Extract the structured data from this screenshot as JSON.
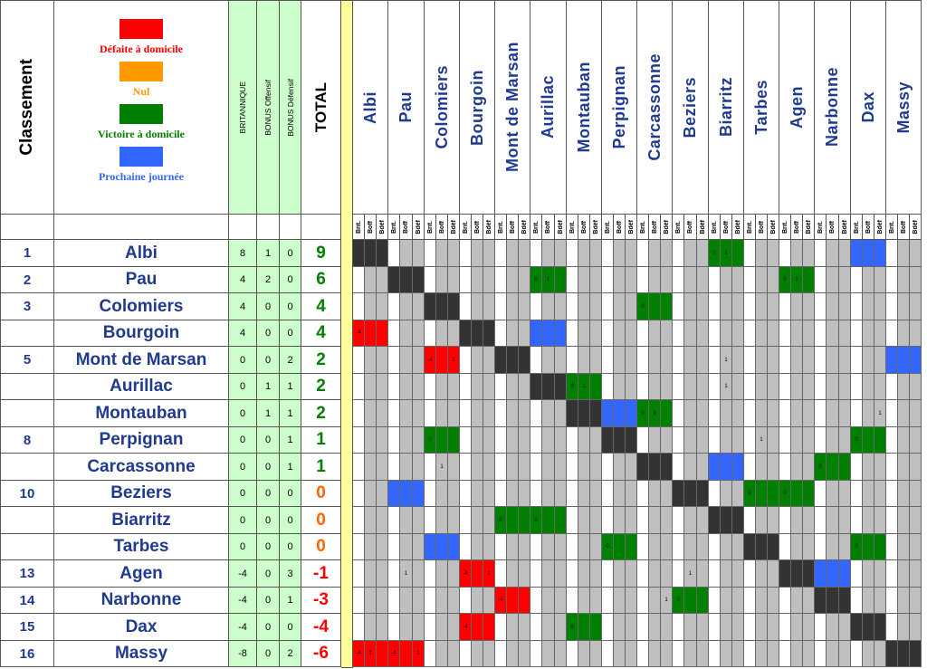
{
  "header": {
    "classement": "Classement",
    "britannique": "BRITANNIQUE",
    "bonus_off": "BONUS Offensif",
    "bonus_def": "BONUS Défensif",
    "total": "TOTAL"
  },
  "legend": [
    {
      "label": "Défaite à domicile",
      "color": "#ff0000"
    },
    {
      "label": "Nul",
      "color": "#ff9900"
    },
    {
      "label": "Victoire à domicile",
      "color": "#008000"
    },
    {
      "label": "Prochaine journée",
      "color": "#3366ff"
    }
  ],
  "subheaders": [
    "Brit.",
    "Boff",
    "Bdéf"
  ],
  "colors": {
    "red": "#ff0000",
    "green": "#008000",
    "blue": "#3366ff",
    "black": "#333333",
    "gray": "#bfbfbf",
    "stat_bg": "#ccffcc",
    "separator": "#ffff99",
    "team_text": "#203a8f",
    "positive": "#008000",
    "negative": "#ff0000",
    "zero": "#ff6600"
  },
  "columns": [
    "Albi",
    "Pau",
    "Colomiers",
    "Bourgoin",
    "Mont de Marsan",
    "Aurillac",
    "Montauban",
    "Perpignan",
    "Carcassonne",
    "Beziers",
    "Biarritz",
    "Tarbes",
    "Agen",
    "Narbonne",
    "Dax",
    "Massy"
  ],
  "rows": [
    {
      "rank": "1",
      "team": "Albi",
      "brit": "8",
      "boff": "1",
      "bdef": "0",
      "total": "9"
    },
    {
      "rank": "2",
      "team": "Pau",
      "brit": "4",
      "boff": "2",
      "bdef": "0",
      "total": "6"
    },
    {
      "rank": "3",
      "team": "Colomiers",
      "brit": "4",
      "boff": "0",
      "bdef": "0",
      "total": "4"
    },
    {
      "rank": "",
      "team": "Bourgoin",
      "brit": "4",
      "boff": "0",
      "bdef": "0",
      "total": "4"
    },
    {
      "rank": "5",
      "team": "Mont de Marsan",
      "brit": "0",
      "boff": "0",
      "bdef": "2",
      "total": "2"
    },
    {
      "rank": "",
      "team": "Aurillac",
      "brit": "0",
      "boff": "1",
      "bdef": "1",
      "total": "2"
    },
    {
      "rank": "",
      "team": "Montauban",
      "brit": "0",
      "boff": "1",
      "bdef": "1",
      "total": "2"
    },
    {
      "rank": "8",
      "team": "Perpignan",
      "brit": "0",
      "boff": "0",
      "bdef": "1",
      "total": "1"
    },
    {
      "rank": "",
      "team": "Carcassonne",
      "brit": "0",
      "boff": "0",
      "bdef": "1",
      "total": "1"
    },
    {
      "rank": "10",
      "team": "Beziers",
      "brit": "0",
      "boff": "0",
      "bdef": "0",
      "total": "0"
    },
    {
      "rank": "",
      "team": "Biarritz",
      "brit": "0",
      "boff": "0",
      "bdef": "0",
      "total": "0"
    },
    {
      "rank": "",
      "team": "Tarbes",
      "brit": "0",
      "boff": "0",
      "bdef": "0",
      "total": "0"
    },
    {
      "rank": "13",
      "team": "Agen",
      "brit": "-4",
      "boff": "0",
      "bdef": "3",
      "total": "-1"
    },
    {
      "rank": "14",
      "team": "Narbonne",
      "brit": "-4",
      "boff": "0",
      "bdef": "1",
      "total": "-3"
    },
    {
      "rank": "15",
      "team": "Dax",
      "brit": "-4",
      "boff": "0",
      "bdef": "0",
      "total": "-4"
    },
    {
      "rank": "16",
      "team": "Massy",
      "brit": "-8",
      "boff": "0",
      "bdef": "2",
      "total": "-6"
    }
  ],
  "results": [
    {
      "row": 0,
      "col": 10,
      "color": "green",
      "vals": [
        "0",
        "1",
        ""
      ]
    },
    {
      "row": 0,
      "col": 14,
      "color": "blue",
      "vals": [
        "",
        "",
        ""
      ]
    },
    {
      "row": 1,
      "col": 5,
      "color": "green",
      "vals": [
        "0",
        "1",
        ""
      ]
    },
    {
      "row": 1,
      "col": 12,
      "color": "green",
      "vals": [
        "0",
        "1",
        ""
      ]
    },
    {
      "row": 2,
      "col": 8,
      "color": "green",
      "vals": [
        "0",
        "",
        ""
      ]
    },
    {
      "row": 3,
      "col": 0,
      "color": "red",
      "vals": [
        "-4",
        "",
        ""
      ]
    },
    {
      "row": 3,
      "col": 5,
      "color": "blue",
      "vals": [
        "",
        "",
        ""
      ]
    },
    {
      "row": 4,
      "col": 2,
      "color": "red",
      "vals": [
        "-4",
        "",
        "1"
      ]
    },
    {
      "row": 4,
      "col": 10,
      "color": "none",
      "vals": [
        "",
        "1",
        ""
      ]
    },
    {
      "row": 4,
      "col": 15,
      "color": "blue",
      "vals": [
        "",
        "",
        ""
      ]
    },
    {
      "row": 5,
      "col": 6,
      "color": "green",
      "vals": [
        "0",
        "1",
        ""
      ]
    },
    {
      "row": 5,
      "col": 10,
      "color": "none",
      "vals": [
        "",
        "1",
        ""
      ]
    },
    {
      "row": 6,
      "col": 7,
      "color": "blue",
      "vals": [
        "",
        "",
        ""
      ]
    },
    {
      "row": 6,
      "col": 8,
      "color": "green",
      "vals": [
        "0",
        "1",
        ""
      ]
    },
    {
      "row": 6,
      "col": 14,
      "color": "none",
      "vals": [
        "",
        "",
        "1"
      ]
    },
    {
      "row": 7,
      "col": 2,
      "color": "green",
      "vals": [
        "0",
        "",
        ""
      ]
    },
    {
      "row": 7,
      "col": 11,
      "color": "none",
      "vals": [
        "",
        "1",
        ""
      ]
    },
    {
      "row": 7,
      "col": 14,
      "color": "green",
      "vals": [
        "0",
        "",
        ""
      ]
    },
    {
      "row": 8,
      "col": 2,
      "color": "none",
      "vals": [
        "",
        "1",
        ""
      ]
    },
    {
      "row": 8,
      "col": 10,
      "color": "blue",
      "vals": [
        "",
        "",
        ""
      ]
    },
    {
      "row": 8,
      "col": 13,
      "color": "green",
      "vals": [
        "0",
        "",
        ""
      ]
    },
    {
      "row": 9,
      "col": 1,
      "color": "blue",
      "vals": [
        "",
        "",
        ""
      ]
    },
    {
      "row": 9,
      "col": 11,
      "color": "green",
      "vals": [
        "0",
        "",
        ""
      ]
    },
    {
      "row": 9,
      "col": 12,
      "color": "green",
      "vals": [
        "0",
        "",
        ""
      ]
    },
    {
      "row": 10,
      "col": 4,
      "color": "green",
      "vals": [
        "0",
        "",
        ""
      ]
    },
    {
      "row": 10,
      "col": 5,
      "color": "green",
      "vals": [
        "0",
        "",
        ""
      ]
    },
    {
      "row": 11,
      "col": 2,
      "color": "blue",
      "vals": [
        "",
        "",
        ""
      ]
    },
    {
      "row": 11,
      "col": 7,
      "color": "green",
      "vals": [
        "0",
        "",
        ""
      ]
    },
    {
      "row": 11,
      "col": 14,
      "color": "green",
      "vals": [
        "0",
        "",
        ""
      ]
    },
    {
      "row": 12,
      "col": 1,
      "color": "none",
      "vals": [
        "",
        "1",
        ""
      ]
    },
    {
      "row": 12,
      "col": 3,
      "color": "red",
      "vals": [
        "-4",
        "",
        "1"
      ]
    },
    {
      "row": 12,
      "col": 9,
      "color": "none",
      "vals": [
        "",
        "1",
        ""
      ]
    },
    {
      "row": 12,
      "col": 13,
      "color": "blue",
      "vals": [
        "",
        "",
        ""
      ]
    },
    {
      "row": 13,
      "col": 4,
      "color": "red",
      "vals": [
        "-4",
        "",
        ""
      ]
    },
    {
      "row": 13,
      "col": 9,
      "color": "green",
      "vals": [
        "0",
        "",
        ""
      ]
    },
    {
      "row": 13,
      "col": 8,
      "color": "none",
      "vals": [
        "",
        "",
        "1"
      ]
    },
    {
      "row": 14,
      "col": 3,
      "color": "red",
      "vals": [
        "-4",
        "",
        ""
      ]
    },
    {
      "row": 14,
      "col": 6,
      "color": "green",
      "vals": [
        "0",
        "",
        ""
      ]
    },
    {
      "row": 15,
      "col": 0,
      "color": "red",
      "vals": [
        "-4",
        "1",
        ""
      ]
    },
    {
      "row": 15,
      "col": 1,
      "color": "red",
      "vals": [
        "-4",
        "",
        "1"
      ]
    }
  ]
}
